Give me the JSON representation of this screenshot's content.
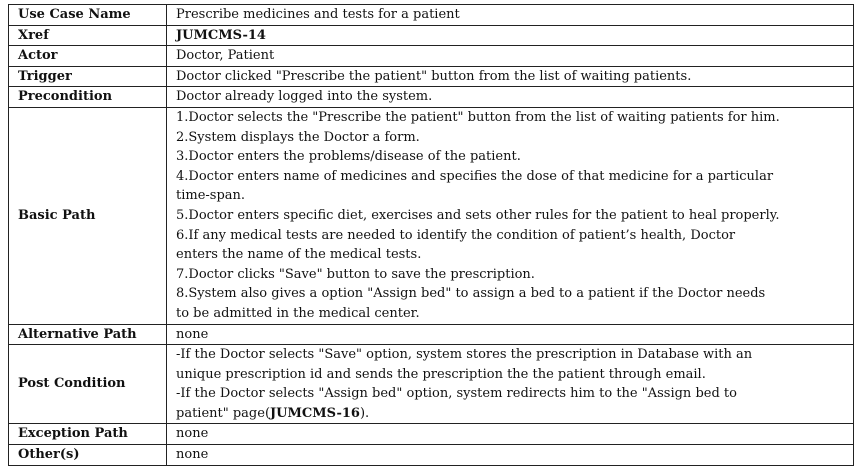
{
  "rows": {
    "use_case_name": {
      "label": "Use Case Name",
      "value": "Prescribe medicines and tests for a patient"
    },
    "xref": {
      "label": "Xref",
      "value": "JUMCMS-14"
    },
    "actor": {
      "label": "Actor",
      "value": "Doctor, Patient"
    },
    "trigger": {
      "label": "Trigger",
      "value": "Doctor clicked \"Prescribe the patient\" button from the list of waiting patients."
    },
    "precondition": {
      "label": "Precondition",
      "value": "Doctor already logged into the system."
    },
    "basic_path": {
      "label": "Basic Path",
      "lines": [
        "1.Doctor selects the \"Prescribe the patient\" button from the list of waiting patients for him.",
        "2.System displays the Doctor a form.",
        "3.Doctor enters the problems/disease of the patient.",
        "4.Doctor enters name of medicines and specifies the dose of that medicine for a particular",
        "time-span.",
        "5.Doctor enters specific diet, exercises and sets other rules for the patient to heal properly.",
        "6.If any medical tests are needed to identify the condition of patient’s health, Doctor",
        "enters the name of the medical tests.",
        "7.Doctor clicks \"Save\" button to save the prescription.",
        "8.System also gives a option \"Assign bed\" to assign a bed to a patient if the Doctor needs",
        "to be admitted in the medical center."
      ]
    },
    "alternative_path": {
      "label": "Alternative Path",
      "value": "none"
    },
    "post_condition": {
      "label": "Post Condition",
      "lines": [
        "-If the Doctor selects \"Save\" option, system stores the prescription in Database with an",
        "unique prescription id and sends the prescription the the patient through email.",
        "-If the Doctor selects \"Assign bed\" option, system redirects him to the \"Assign bed to"
      ],
      "last_line_prefix": "patient\" page(",
      "last_line_bold": "JUMCMS-16",
      "last_line_suffix": ")."
    },
    "exception_path": {
      "label": "Exception Path",
      "value": "none"
    },
    "others": {
      "label": "Other(s)",
      "value": "none"
    }
  }
}
